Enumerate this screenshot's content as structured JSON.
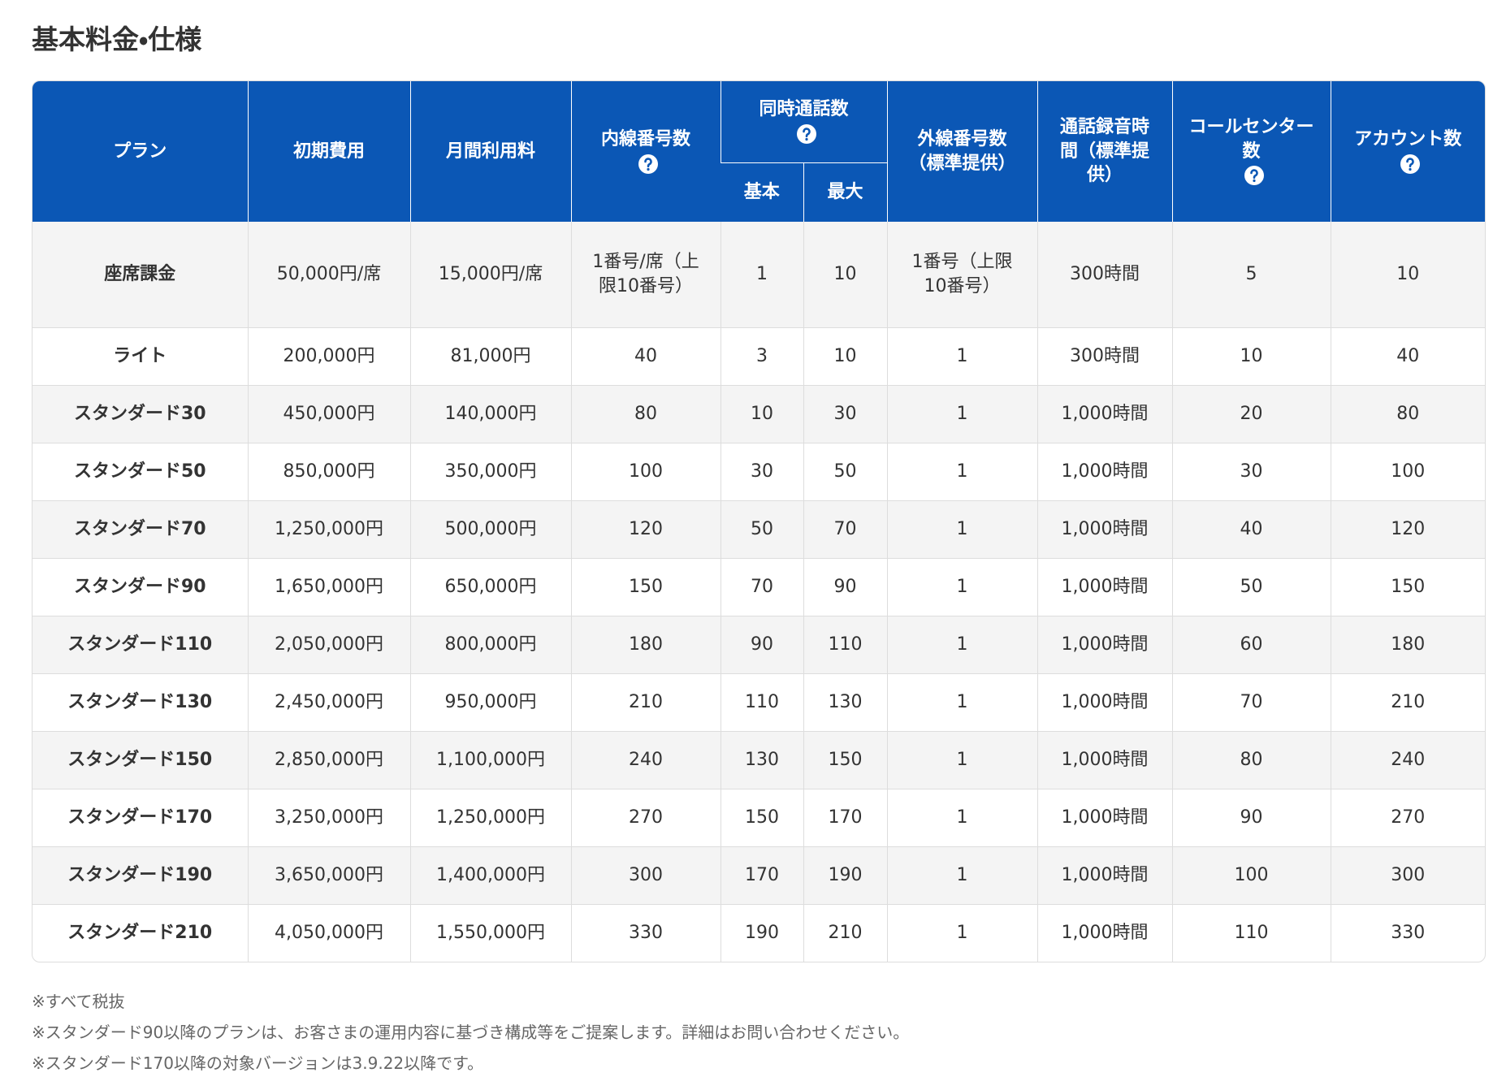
{
  "header": {
    "title": "基本料金・仕様"
  },
  "table": {
    "columns": [
      "プラン",
      "初期費用",
      "月間利用料",
      "内線番号数",
      "同時通話数",
      "外線番号数（標準提供）",
      "通話録音時間（標準提供）",
      "コールセンター数",
      "アカウント数"
    ],
    "subcolumns": [
      "基本",
      "最大"
    ],
    "rows": [
      [
        "座席課金",
        "50,000円/席",
        "15,000円/席",
        "1番号/席（上限10番号）",
        "1",
        "10",
        "1番号（上限10番号）",
        "300時間",
        "5",
        "10"
      ],
      [
        "ライト",
        "200,000円",
        "81,000円",
        "40",
        "3",
        "10",
        "1",
        "300時間",
        "10",
        "40"
      ],
      [
        "スタンダード30",
        "450,000円",
        "140,000円",
        "80",
        "10",
        "30",
        "1",
        "1,000時間",
        "20",
        "80"
      ],
      [
        "スタンダード50",
        "850,000円",
        "350,000円",
        "100",
        "30",
        "50",
        "1",
        "1,000時間",
        "30",
        "100"
      ],
      [
        "スタンダード70",
        "1,250,000円",
        "500,000円",
        "120",
        "50",
        "70",
        "1",
        "1,000時間",
        "40",
        "120"
      ],
      [
        "スタンダード90",
        "1,650,000円",
        "650,000円",
        "150",
        "70",
        "90",
        "1",
        "1,000時間",
        "50",
        "150"
      ],
      [
        "スタンダード110",
        "2,050,000円",
        "800,000円",
        "180",
        "90",
        "110",
        "1",
        "1,000時間",
        "60",
        "180"
      ],
      [
        "スタンダード130",
        "2,450,000円",
        "950,000円",
        "210",
        "110",
        "130",
        "1",
        "1,000時間",
        "70",
        "210"
      ],
      [
        "スタンダード150",
        "2,850,000円",
        "1,100,000円",
        "240",
        "130",
        "150",
        "1",
        "1,000時間",
        "80",
        "240"
      ],
      [
        "スタンダード170",
        "3,250,000円",
        "1,250,000円",
        "270",
        "150",
        "170",
        "1",
        "1,000時間",
        "90",
        "270"
      ],
      [
        "スタンダード190",
        "3,650,000円",
        "1,400,000円",
        "300",
        "170",
        "190",
        "1",
        "1,000時間",
        "100",
        "300"
      ],
      [
        "スタンダード210",
        "4,050,000円",
        "1,550,000円",
        "330",
        "190",
        "210",
        "1",
        "1,000時間",
        "110",
        "330"
      ]
    ]
  },
  "notes": [
    "※すべて税抜",
    "※スタンダード90以降のプランは、お客さまの運用内容に基づき構成等をご提案します。詳細はお問い合わせください。",
    "※スタンダード170以降の対象バージョンは3.9.22以降です。"
  ]
}
